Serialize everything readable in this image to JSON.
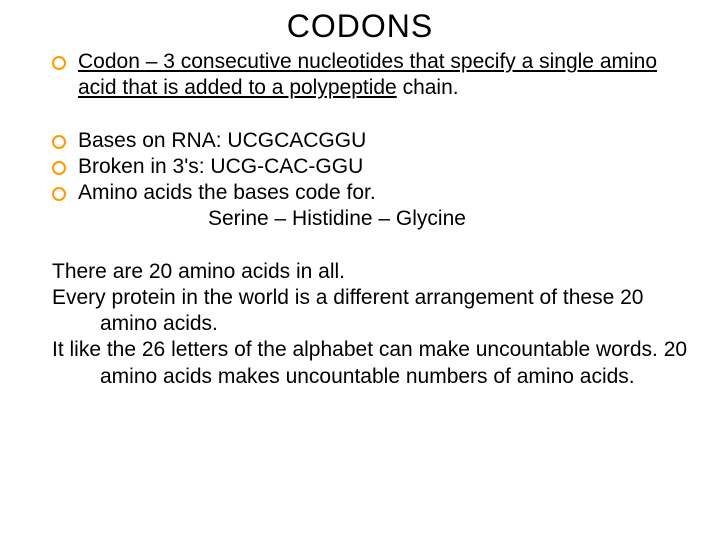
{
  "title": "CODONS",
  "bullets": {
    "b1_prefix": "Codon ",
    "b1_mid": "– 3 consecutive nucleotides that specify a single amino acid that is added to a polypeptide",
    "b1_tail": " chain.",
    "b2": "Bases on RNA:   UCGCACGGU",
    "b3": "Broken in 3's:    UCG-CAC-GGU",
    "b4": "Amino acids the bases code for.",
    "b4_indent": "Serine – Histidine – Glycine"
  },
  "body": {
    "p1": "There are 20 amino acids in all.",
    "p2": "Every protein in the world is a different arrangement of these 20 amino acids.",
    "p3": "It like the 26 letters of the alphabet can make uncountable words.  20 amino acids makes uncountable numbers of amino acids."
  },
  "colors": {
    "bullet_ring": "#ff9900",
    "text": "#000000",
    "background": "#ffffff"
  }
}
